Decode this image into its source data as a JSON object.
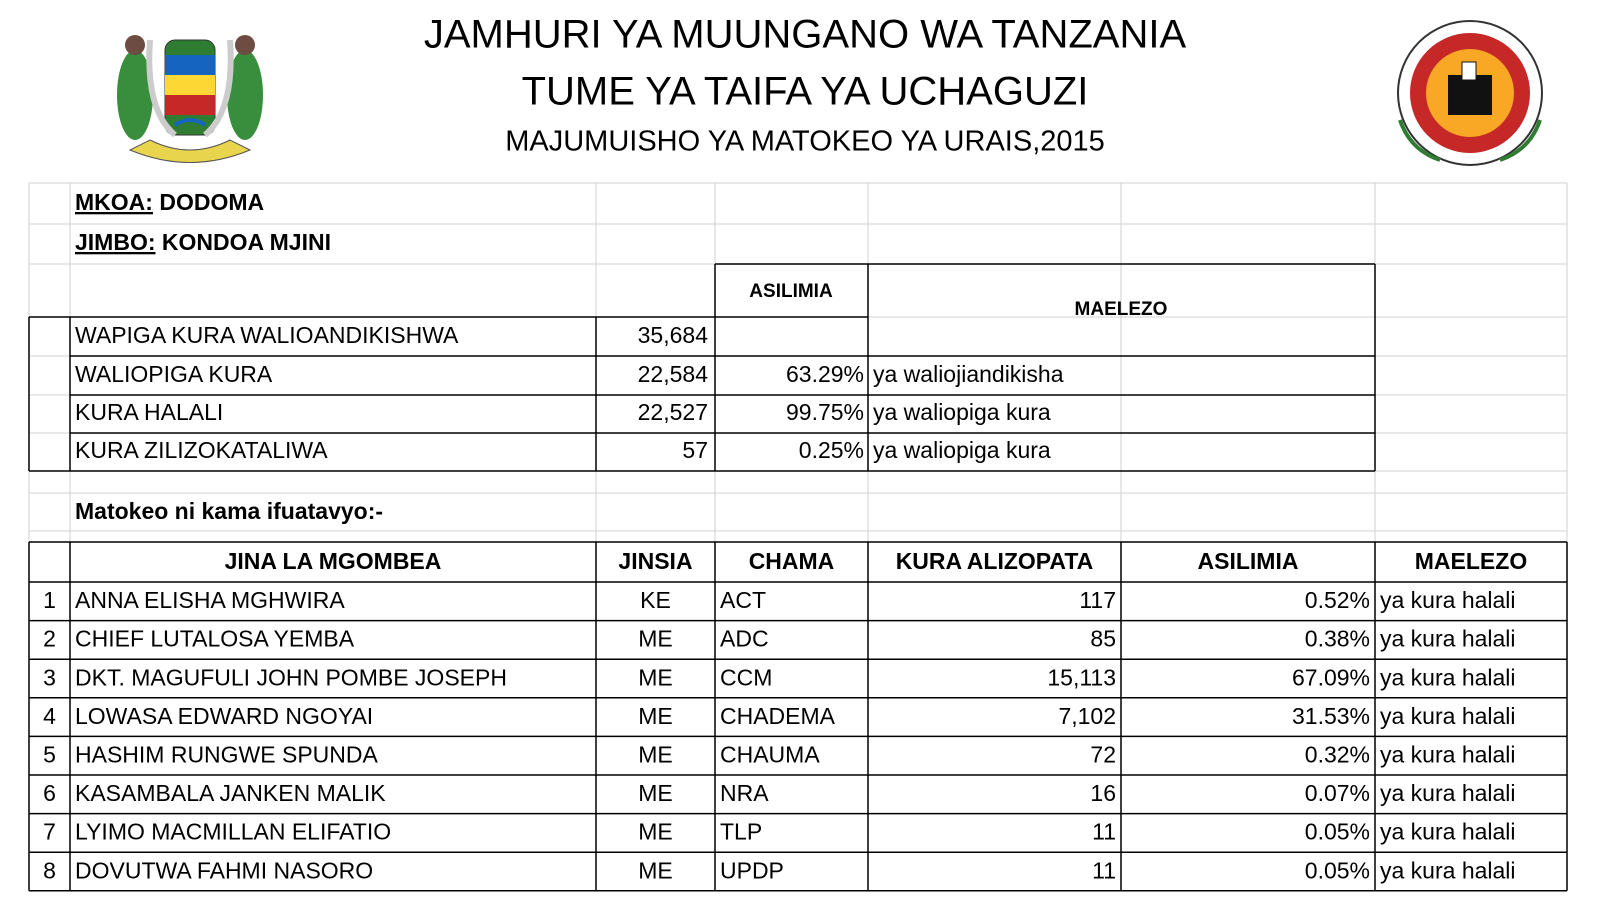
{
  "header": {
    "title_line1": "JAMHURI YA MUUNGANO WA TANZANIA",
    "title_line2": "TUME YA TAIFA YA UCHAGUZI",
    "subtitle": "MAJUMUISHO YA MATOKEO YA URAIS,2015"
  },
  "region": {
    "label": "MKOA:",
    "value": "DODOMA"
  },
  "constituency": {
    "label": "JIMBO:",
    "value": "KONDOA MJINI"
  },
  "summary": {
    "headers": [
      "ASILIMIA",
      "MAELEZO"
    ],
    "rows": [
      {
        "label": "WAPIGA KURA WALIOANDIKISHWA",
        "count": "35,684"
      },
      {
        "label": "WALIOPIGA KURA",
        "count": "22,584",
        "percent": "63.29%",
        "note": "ya waliojiandikisha"
      },
      {
        "label": "KURA HALALI",
        "count": "22,527",
        "percent": "99.75%",
        "note": "ya waliopiga kura"
      },
      {
        "label": "KURA ZILIZOKATALIWA",
        "count": "57",
        "percent": "0.25%",
        "note": "ya waliopiga kura"
      }
    ]
  },
  "results_intro": "Matokeo ni kama ifuatavyo:-",
  "results": {
    "columns": [
      "JINA LA MGOMBEA",
      "JINSIA",
      "CHAMA",
      "KURA ALIZOPATA",
      "ASILIMIA",
      "MAELEZO"
    ],
    "rows": [
      [
        "1",
        "ANNA ELISHA MGHWIRA",
        "KE",
        "ACT",
        "117",
        "0.52%",
        "ya kura halali"
      ],
      [
        "2",
        "CHIEF LUTALOSA YEMBA",
        "ME",
        "ADC",
        "85",
        "0.38%",
        "ya kura halali"
      ],
      [
        "3",
        "DKT. MAGUFULI JOHN POMBE JOSEPH",
        "ME",
        "CCM",
        "15,113",
        "67.09%",
        "ya kura halali"
      ],
      [
        "4",
        "LOWASA EDWARD NGOYAI",
        "ME",
        "CHADEMA",
        "7,102",
        "31.53%",
        "ya kura halali"
      ],
      [
        "5",
        "HASHIM RUNGWE SPUNDA",
        "ME",
        "CHAUMA",
        "72",
        "0.32%",
        "ya kura halali"
      ],
      [
        "6",
        "KASAMBALA JANKEN MALIK",
        "ME",
        "NRA",
        "16",
        "0.07%",
        "ya kura halali"
      ],
      [
        "7",
        "LYIMO MACMILLAN ELIFATIO",
        "ME",
        "TLP",
        "11",
        "0.05%",
        "ya kura halali"
      ],
      [
        "8",
        "DOVUTWA FAHMI NASORO",
        "ME",
        "UPDP",
        "11",
        "0.05%",
        "ya kura halali"
      ]
    ]
  }
}
